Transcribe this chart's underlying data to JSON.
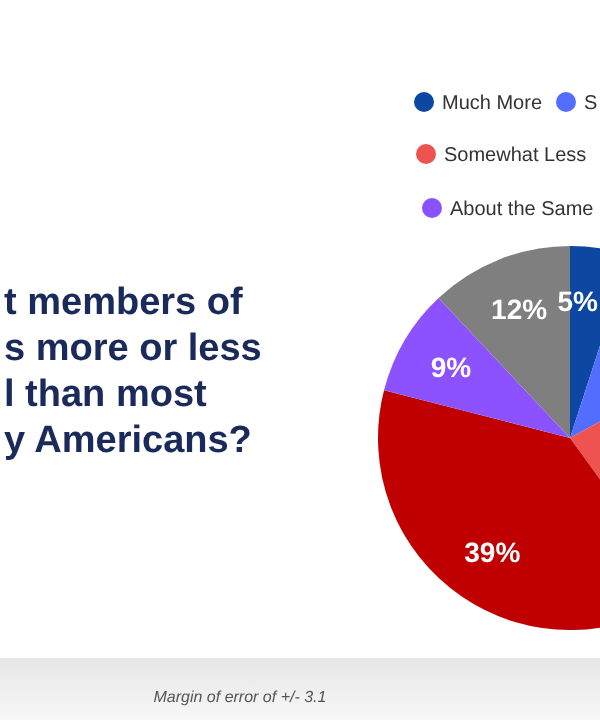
{
  "chart_data": {
    "type": "pie",
    "title": "t members of\ns more or less\nl than most\ny Americans?",
    "categories": [
      "Much More",
      "S",
      "Somewhat Less",
      null,
      "About the Same",
      null
    ],
    "values": [
      5,
      12,
      23,
      39,
      9,
      12
    ],
    "colors": [
      "#0d47a1",
      "#536dfe",
      "#ef5350",
      "#c00000",
      "#8c52ff",
      "#7f7f7f"
    ],
    "value_labels": [
      "5%",
      null,
      null,
      "39%",
      "9%",
      "12%"
    ],
    "legend": "top",
    "annotations": [
      "Margin of error of +/- 3.1"
    ]
  }
}
